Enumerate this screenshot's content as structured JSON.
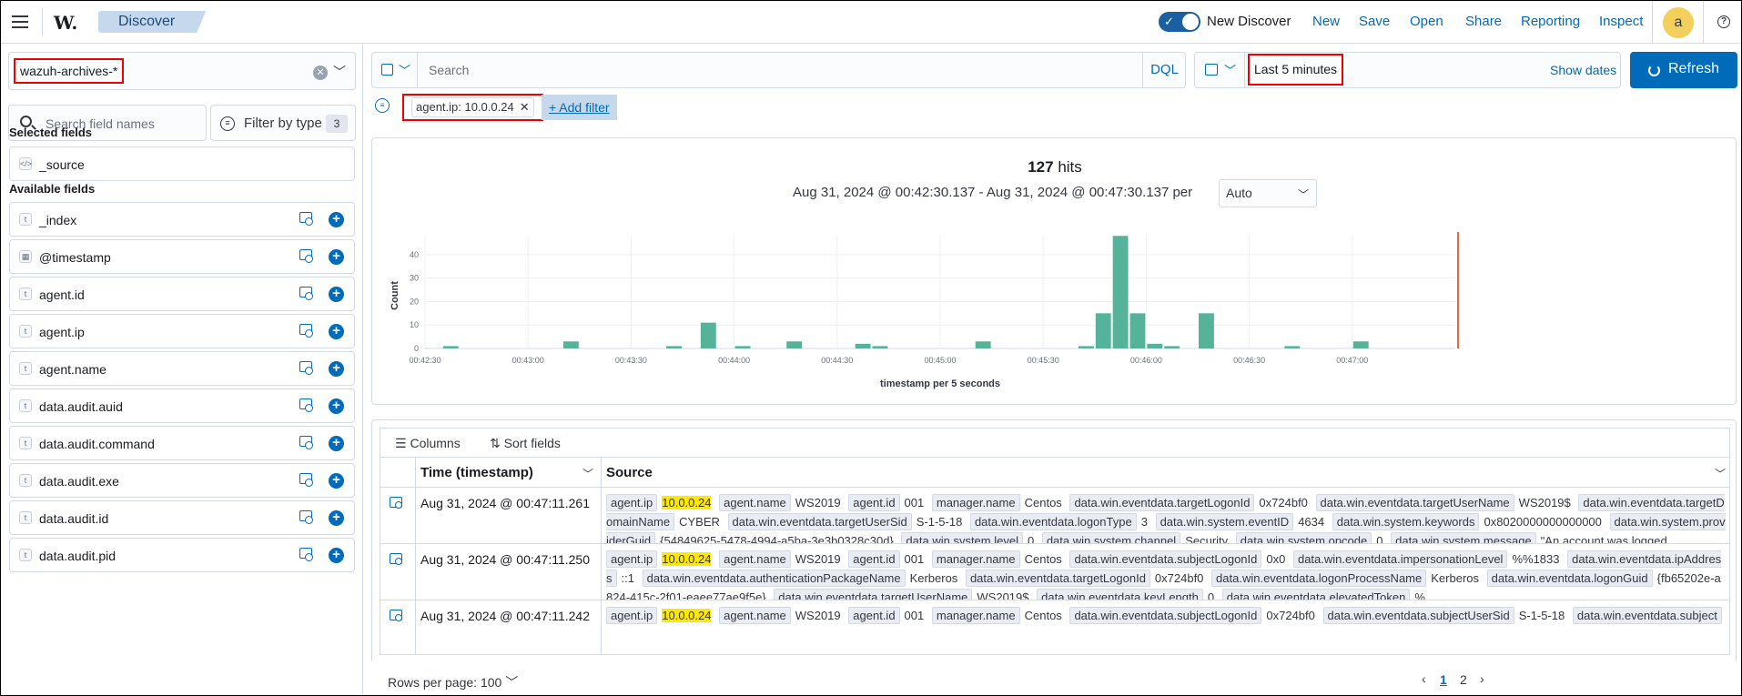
{
  "header": {
    "logo": "W.",
    "breadcrumb": "Discover",
    "toggle_label": "New Discover",
    "links": [
      "New",
      "Save",
      "Open",
      "Share",
      "Reporting",
      "Inspect"
    ],
    "avatar": "a",
    "help": "?"
  },
  "sidebar": {
    "index_pattern": "wazuh-archives-*",
    "search_placeholder": "Search field names",
    "filter_by_type": "Filter by type",
    "filter_count": "3",
    "selected_heading": "Selected fields",
    "selected_fields": [
      "_source"
    ],
    "available_heading": "Available fields",
    "available_fields": [
      "_index",
      "@timestamp",
      "agent.id",
      "agent.ip",
      "agent.name",
      "data.audit.auid",
      "data.audit.command",
      "data.audit.exe",
      "data.audit.id",
      "data.audit.pid"
    ]
  },
  "query": {
    "placeholder": "Search",
    "language": "DQL",
    "time_range": "Last 5 minutes",
    "show_dates": "Show dates",
    "refresh": "Refresh"
  },
  "filters": {
    "pill": "agent.ip: 10.0.0.24",
    "add_filter": "+ Add filter"
  },
  "histogram": {
    "hits_count": "127",
    "hits_label": "hits",
    "range_text": "Aug 31, 2024 @ 00:42:30.137 - Aug 31, 2024 @ 00:47:30.137 per",
    "interval": "Auto"
  },
  "chart_data": {
    "type": "bar",
    "ylabel": "Count",
    "xlabel": "timestamp per 5 seconds",
    "ylim": [
      0,
      45
    ],
    "y_ticks": [
      "0",
      "10",
      "20",
      "30",
      "40"
    ],
    "x_ticks": [
      "00:42:30",
      "00:43:00",
      "00:43:30",
      "00:44:00",
      "00:44:30",
      "00:45:00",
      "00:45:30",
      "00:46:00",
      "00:46:30",
      "00:47:00"
    ],
    "bar_times": [
      "00:42:35",
      "00:43:10",
      "00:43:40",
      "00:43:50",
      "00:44:00",
      "00:44:15",
      "00:44:35",
      "00:44:40",
      "00:45:10",
      "00:45:40",
      "00:45:45",
      "00:45:50",
      "00:45:55",
      "00:46:00",
      "00:46:05",
      "00:46:15",
      "00:46:40",
      "00:47:00"
    ],
    "values": [
      1,
      3,
      1,
      11,
      1,
      3,
      2,
      1,
      3,
      1,
      15,
      48,
      15,
      2,
      1,
      15,
      1,
      3
    ],
    "grid": true,
    "bar_color": "#54b399",
    "now_marker_color": "#e7664c"
  },
  "table": {
    "columns_btn": "Columns",
    "sort_btn": "Sort fields",
    "col_time": "Time (timestamp)",
    "col_source": "Source",
    "rows": [
      {
        "time": "Aug 31, 2024 @ 00:47:11.261",
        "source": [
          [
            "agent.ip",
            "10.0.0.24"
          ],
          [
            "agent.name",
            "WS2019"
          ],
          [
            "agent.id",
            "001"
          ],
          [
            "manager.name",
            "Centos"
          ],
          [
            "data.win.eventdata.targetLogonId",
            "0x724bf0"
          ],
          [
            "data.win.eventdata.targetUserName",
            "WS2019$"
          ],
          [
            "data.win.eventdata.targetDomainName",
            "CYBER"
          ],
          [
            "data.win.eventdata.targetUserSid",
            "S-1-5-18"
          ],
          [
            "data.win.eventdata.logonType",
            "3"
          ],
          [
            "data.win.system.eventID",
            "4634"
          ],
          [
            "data.win.system.keywords",
            "0x8020000000000000"
          ],
          [
            "data.win.system.providerGuid",
            "{54849625-5478-4994-a5ba-3e3b0328c30d}"
          ],
          [
            "data.win.system.level",
            "0"
          ],
          [
            "data.win.system.channel",
            "Security"
          ],
          [
            "data.win.system.opcode",
            "0"
          ],
          [
            "data.win.system.message",
            "\"An account was logged ..."
          ]
        ]
      },
      {
        "time": "Aug 31, 2024 @ 00:47:11.250",
        "source": [
          [
            "agent.ip",
            "10.0.0.24"
          ],
          [
            "agent.name",
            "WS2019"
          ],
          [
            "agent.id",
            "001"
          ],
          [
            "manager.name",
            "Centos"
          ],
          [
            "data.win.eventdata.subjectLogonId",
            "0x0"
          ],
          [
            "data.win.eventdata.impersonationLevel",
            "%%1833"
          ],
          [
            "data.win.eventdata.ipAddress",
            "::1"
          ],
          [
            "data.win.eventdata.authenticationPackageName",
            "Kerberos"
          ],
          [
            "data.win.eventdata.targetLogonId",
            "0x724bf0"
          ],
          [
            "data.win.eventdata.logonProcessName",
            "Kerberos"
          ],
          [
            "data.win.eventdata.logonGuid",
            "{fb65202e-a824-415c-2f01-eaee77ae9f5e}"
          ],
          [
            "data.win.eventdata.targetUserName",
            "WS2019$"
          ],
          [
            "data.win.eventdata.keyLength",
            "0"
          ],
          [
            "data.win.eventdata.elevatedToken",
            "%..."
          ]
        ]
      },
      {
        "time": "Aug 31, 2024 @ 00:47:11.242",
        "source": [
          [
            "agent.ip",
            "10.0.0.24"
          ],
          [
            "agent.name",
            "WS2019"
          ],
          [
            "agent.id",
            "001"
          ],
          [
            "manager.name",
            "Centos"
          ],
          [
            "data.win.eventdata.subjectLogonId",
            "0x724bf0"
          ],
          [
            "data.win.eventdata.subjectUserSid",
            "S-1-5-18"
          ],
          [
            "data.win.eventdata.subject",
            ""
          ]
        ]
      }
    ],
    "highlight_value": "10.0.0.24"
  },
  "pager": {
    "rows_per_page": "Rows per page: 100",
    "pages": [
      "1",
      "2"
    ]
  }
}
